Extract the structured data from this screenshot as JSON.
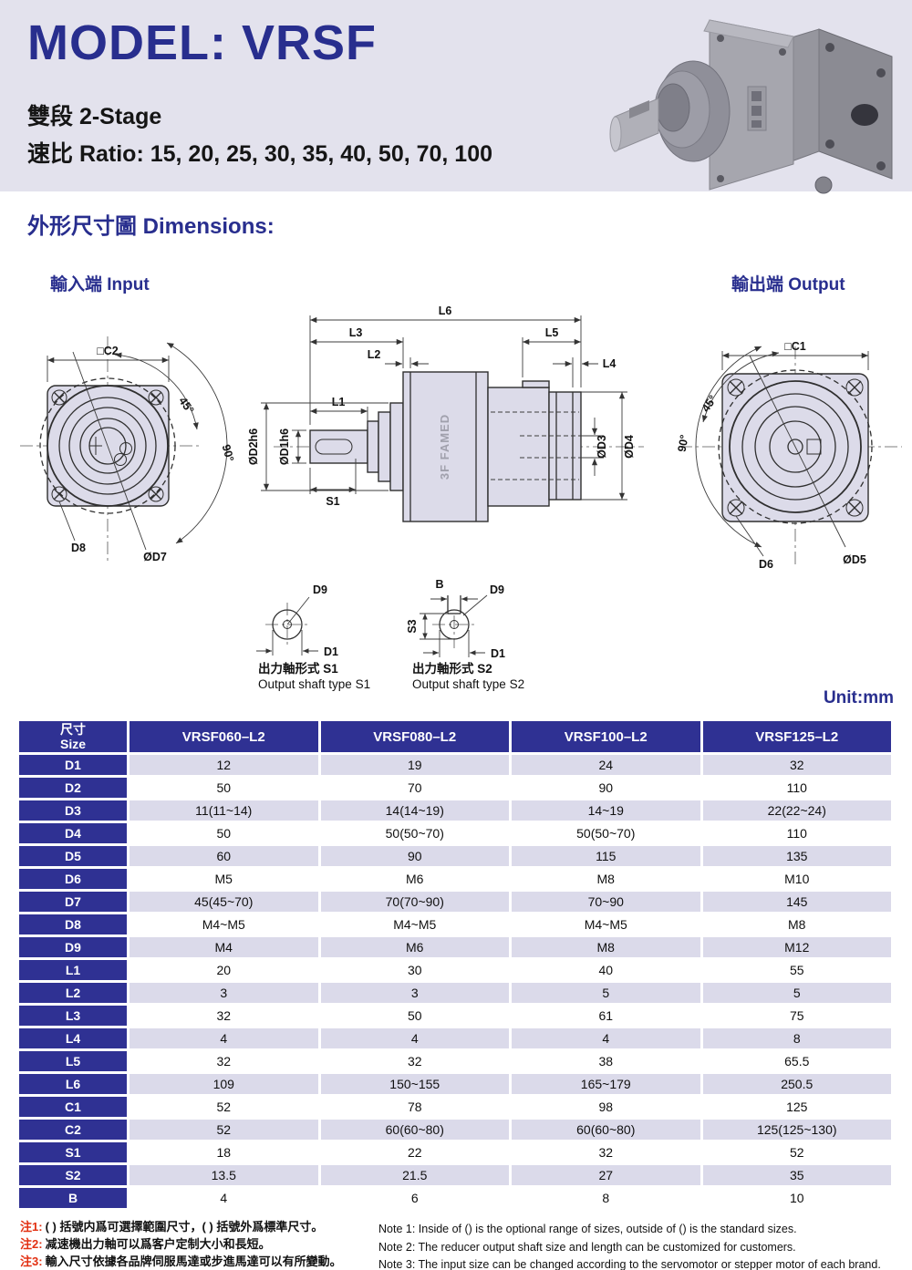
{
  "header": {
    "title": "MODEL: VRSF",
    "stage": "雙段 2-Stage",
    "ratio": "速比 Ratio: 15, 20, 25, 30, 35, 40, 50, 70, 100"
  },
  "section": {
    "dimensions_title": "外形尺寸圖 Dimensions:"
  },
  "drawings": {
    "input_title": "輸入端 Input",
    "output_title": "輸出端 Output",
    "input": {
      "c2": "□C2",
      "a45": "45°",
      "a90": "90°",
      "d8": "D8",
      "d7": "ØD7"
    },
    "side": {
      "l6": "L6",
      "l3": "L3",
      "l2": "L2",
      "l1": "L1",
      "l5": "L5",
      "l4": "L4",
      "s1": "S1",
      "d1h6": "ØD1h6",
      "d2h6": "ØD2h6",
      "d3": "ØD3",
      "d4": "ØD4",
      "logo": "3F FAMED"
    },
    "output": {
      "c1": "□C1",
      "a45": "45°",
      "a90": "90°",
      "d6": "D6",
      "d5": "ØD5"
    },
    "s1": {
      "d9": "D9",
      "d1": "D1",
      "caption_zh": "出力軸形式 S1",
      "caption_en": "Output shaft type S1"
    },
    "s2": {
      "b": "B",
      "d9": "D9",
      "s3": "S3",
      "d1": "D1",
      "caption_zh": "出力軸形式 S2",
      "caption_en": "Output shaft type S2"
    }
  },
  "table": {
    "unit": "Unit:mm",
    "header": {
      "size_zh": "尺寸",
      "size_en": "Size",
      "cols": [
        "VRSF060–L2",
        "VRSF080–L2",
        "VRSF100–L2",
        "VRSF125–L2"
      ]
    },
    "rows": [
      {
        "name": "D1",
        "values": [
          "12",
          "19",
          "24",
          "32"
        ]
      },
      {
        "name": "D2",
        "values": [
          "50",
          "70",
          "90",
          "110"
        ]
      },
      {
        "name": "D3",
        "values": [
          "11(11~14)",
          "14(14~19)",
          "14~19",
          "22(22~24)"
        ]
      },
      {
        "name": "D4",
        "values": [
          "50",
          "50(50~70)",
          "50(50~70)",
          "110"
        ]
      },
      {
        "name": "D5",
        "values": [
          "60",
          "90",
          "115",
          "135"
        ]
      },
      {
        "name": "D6",
        "values": [
          "M5",
          "M6",
          "M8",
          "M10"
        ]
      },
      {
        "name": "D7",
        "values": [
          "45(45~70)",
          "70(70~90)",
          "70~90",
          "145"
        ]
      },
      {
        "name": "D8",
        "values": [
          "M4~M5",
          "M4~M5",
          "M4~M5",
          "M8"
        ]
      },
      {
        "name": "D9",
        "values": [
          "M4",
          "M6",
          "M8",
          "M12"
        ]
      },
      {
        "name": "L1",
        "values": [
          "20",
          "30",
          "40",
          "55"
        ]
      },
      {
        "name": "L2",
        "values": [
          "3",
          "3",
          "5",
          "5"
        ]
      },
      {
        "name": "L3",
        "values": [
          "32",
          "50",
          "61",
          "75"
        ]
      },
      {
        "name": "L4",
        "values": [
          "4",
          "4",
          "4",
          "8"
        ]
      },
      {
        "name": "L5",
        "values": [
          "32",
          "32",
          "38",
          "65.5"
        ]
      },
      {
        "name": "L6",
        "values": [
          "109",
          "150~155",
          "165~179",
          "250.5"
        ]
      },
      {
        "name": "C1",
        "values": [
          "52",
          "78",
          "98",
          "125"
        ]
      },
      {
        "name": "C2",
        "values": [
          "52",
          "60(60~80)",
          "60(60~80)",
          "125(125~130)"
        ]
      },
      {
        "name": "S1",
        "values": [
          "18",
          "22",
          "32",
          "52"
        ]
      },
      {
        "name": "S2",
        "values": [
          "13.5",
          "21.5",
          "27",
          "35"
        ]
      },
      {
        "name": "B",
        "values": [
          "4",
          "6",
          "8",
          "10"
        ]
      }
    ]
  },
  "notes": {
    "zh": [
      {
        "label": "注1:",
        "text": "( ) 括號内爲可選擇範圍尺寸，( ) 括號外爲標準尺寸。"
      },
      {
        "label": "注2:",
        "text": "减速機出力軸可以爲客户定制大小和長短。"
      },
      {
        "label": "注3:",
        "text": "輸入尺寸依據各品牌伺服馬達或步進馬達可以有所變動。"
      }
    ],
    "en": [
      "Note 1: Inside of () is the optional range of sizes, outside of () is the standard sizes.",
      "Note 2: The reducer output shaft size and length can be customized for customers.",
      "Note 3: The input size can be changed according to the servomotor or stepper motor of each brand."
    ]
  },
  "colors": {
    "navy": "#282e8e",
    "tableHeader": "#2f3193",
    "rowAlt": "#dbdaea",
    "band": "#e3e2ed",
    "drawingFill": "#dcdbe9",
    "red": "#e23012"
  }
}
